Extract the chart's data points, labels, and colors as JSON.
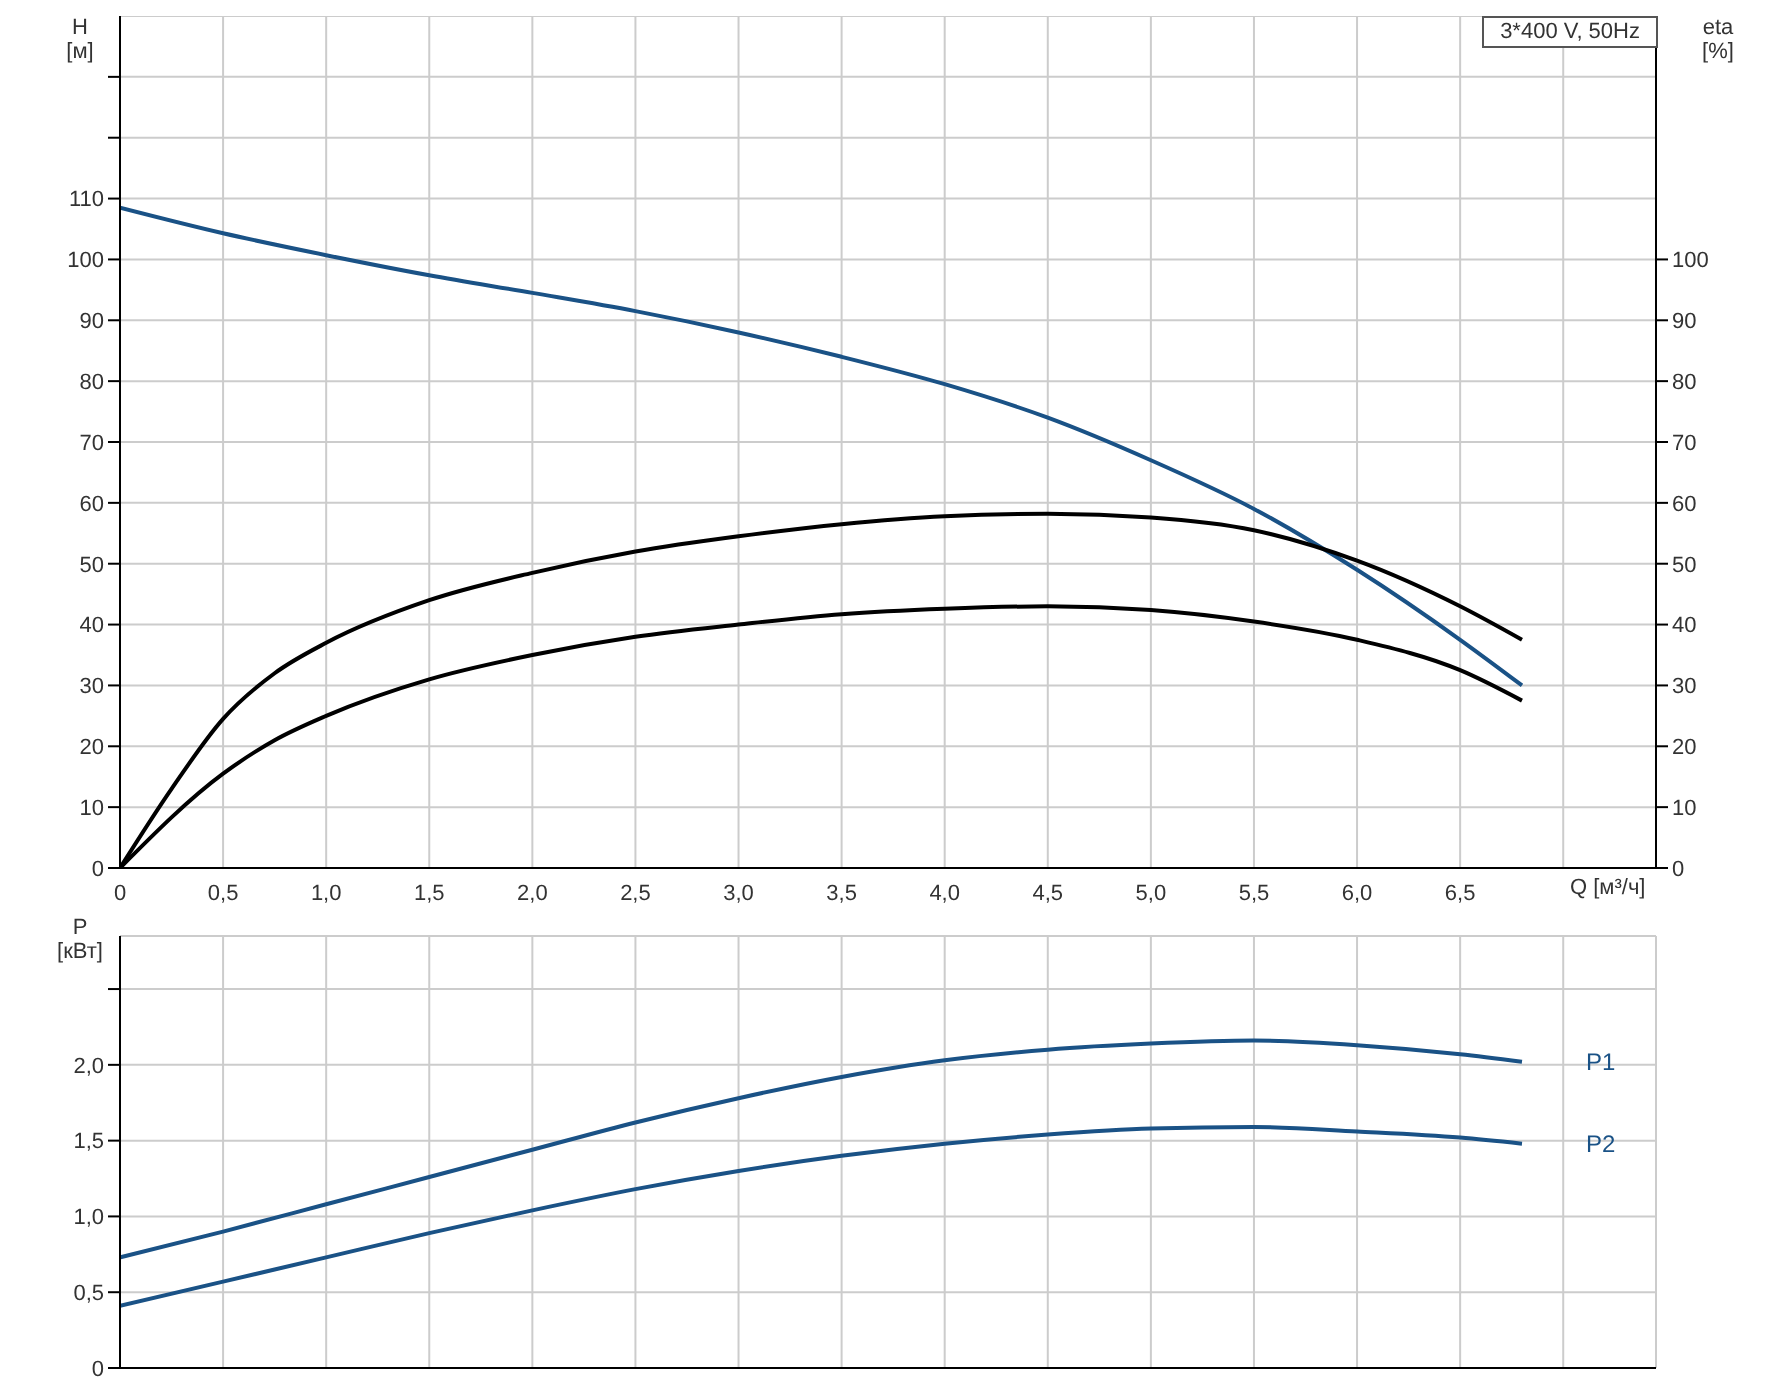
{
  "chart_data": [
    {
      "type": "line",
      "ylabel": "H [м]",
      "y2label": "eta [%]",
      "xlabel": "Q [м³/ч]",
      "annotations": [
        "3*400 V, 50Hz"
      ],
      "xlim": [
        0,
        7.45
      ],
      "xticks": [
        0,
        {
          "value": 0.5,
          "label": "0,5"
        },
        {
          "value": 1,
          "label": "1,0"
        },
        {
          "value": 1.5,
          "label": "1,5"
        },
        {
          "value": 2,
          "label": "2,0"
        },
        {
          "value": 2.5,
          "label": "2,5"
        },
        {
          "value": 3,
          "label": "3,0"
        },
        {
          "value": 3.5,
          "label": "3,5"
        },
        {
          "value": 4,
          "label": "4,0"
        },
        {
          "value": 4.5,
          "label": "4,5"
        },
        {
          "value": 5,
          "label": "5,0"
        },
        {
          "value": 5.5,
          "label": "5,5"
        },
        {
          "value": 6,
          "label": "6,0"
        },
        {
          "value": 6.5,
          "label": "6,5"
        },
        {
          "value": 7,
          "label": null
        }
      ],
      "ylim": [
        0,
        140
      ],
      "yticks": [
        0,
        10,
        20,
        30,
        40,
        50,
        60,
        70,
        80,
        90,
        100,
        110,
        {
          "value": 120,
          "label": null
        },
        {
          "value": 130,
          "label": null
        }
      ],
      "y2lim": [
        0,
        140
      ],
      "y2ticks": [
        0,
        10,
        20,
        30,
        40,
        50,
        60,
        70,
        80,
        90,
        100
      ],
      "grid": true,
      "marker": "none",
      "line_style": "solid",
      "series": [
        {
          "color": "#1a5286",
          "x": [
            0,
            0.5,
            1,
            1.5,
            2,
            2.5,
            3,
            3.5,
            4,
            4.5,
            5,
            5.5,
            6,
            6.5,
            6.8
          ],
          "values": [
            108.5,
            104.3,
            100.7,
            97.4,
            94.5,
            91.5,
            88,
            84,
            79.5,
            74,
            67,
            59,
            49,
            37.5,
            30
          ]
        },
        {
          "color": "#000000",
          "x": [
            0,
            0.25,
            0.5,
            0.75,
            1,
            1.5,
            2,
            2.5,
            3,
            3.5,
            4,
            4.5,
            5,
            5.5,
            6,
            6.5,
            6.8
          ],
          "values": [
            0,
            13,
            24.5,
            32,
            37,
            44,
            48.5,
            52,
            54.5,
            56.5,
            57.8,
            58.2,
            57.6,
            55.5,
            50.5,
            43,
            37.5
          ]
        },
        {
          "color": "#000000",
          "x": [
            0,
            0.5,
            0.75,
            1,
            1.5,
            2,
            2.5,
            3,
            3.5,
            4,
            4.5,
            5,
            5.5,
            6,
            6.5,
            6.8
          ],
          "values": [
            0,
            15.5,
            21,
            25,
            31,
            35,
            38,
            40,
            41.7,
            42.6,
            43,
            42.4,
            40.5,
            37.5,
            32.5,
            27.5
          ]
        }
      ]
    },
    {
      "type": "line",
      "ylabel": "P [кВт]",
      "tick_labels": "y",
      "xlim": [
        0,
        7.45
      ],
      "xticks": [
        {
          "value": 0,
          "label": null
        },
        {
          "value": 0.5,
          "label": null
        },
        {
          "value": 1,
          "label": null
        },
        {
          "value": 1.5,
          "label": null
        },
        {
          "value": 2,
          "label": null
        },
        {
          "value": 2.5,
          "label": null
        },
        {
          "value": 3,
          "label": null
        },
        {
          "value": 3.5,
          "label": null
        },
        {
          "value": 4,
          "label": null
        },
        {
          "value": 4.5,
          "label": null
        },
        {
          "value": 5,
          "label": null
        },
        {
          "value": 5.5,
          "label": null
        },
        {
          "value": 6,
          "label": null
        },
        {
          "value": 6.5,
          "label": null
        },
        {
          "value": 7,
          "label": null
        }
      ],
      "ylim": [
        0,
        2.85
      ],
      "yticks": [
        0,
        {
          "value": 0.5,
          "label": "0,5"
        },
        {
          "value": 1,
          "label": "1,0"
        },
        {
          "value": 1.5,
          "label": "1,5"
        },
        {
          "value": 2,
          "label": "2,0"
        },
        {
          "value": 2.5,
          "label": null
        }
      ],
      "grid": true,
      "marker": "none",
      "line_style": "solid",
      "series": [
        {
          "name": "P1",
          "color": "#1a5286",
          "x": [
            0,
            0.5,
            1,
            1.5,
            2,
            2.5,
            3,
            3.5,
            4,
            4.5,
            5,
            5.5,
            6,
            6.5,
            6.8
          ],
          "values": [
            0.73,
            0.9,
            1.08,
            1.26,
            1.44,
            1.62,
            1.78,
            1.92,
            2.03,
            2.1,
            2.14,
            2.16,
            2.13,
            2.07,
            2.02
          ]
        },
        {
          "name": "P2",
          "color": "#1a5286",
          "x": [
            0,
            0.5,
            1,
            1.5,
            2,
            2.5,
            3,
            3.5,
            4,
            4.5,
            5,
            5.5,
            6,
            6.5,
            6.8
          ],
          "values": [
            0.41,
            0.57,
            0.73,
            0.89,
            1.04,
            1.18,
            1.3,
            1.4,
            1.48,
            1.54,
            1.58,
            1.59,
            1.56,
            1.52,
            1.48
          ]
        }
      ]
    }
  ]
}
